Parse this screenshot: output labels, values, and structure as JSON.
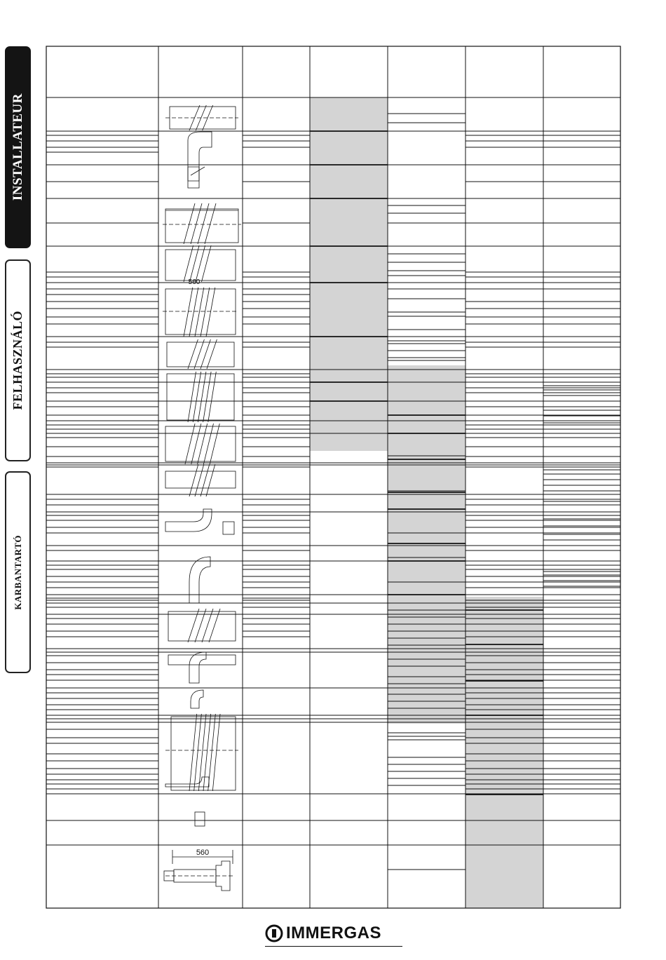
{
  "side_tabs": [
    {
      "label": "INSTALLATEUR",
      "active": true
    },
    {
      "label": "FELHASZNÁLÓ",
      "active": false
    },
    {
      "label": "KARBANTARTÓ",
      "active": false
    }
  ],
  "figure_labels": {
    "dimension_top": "560",
    "dimension_bottom": "560"
  },
  "brand": {
    "name": "IMMERGAS",
    "shade_color": "#d4d4d4",
    "line_color": "#111111"
  }
}
